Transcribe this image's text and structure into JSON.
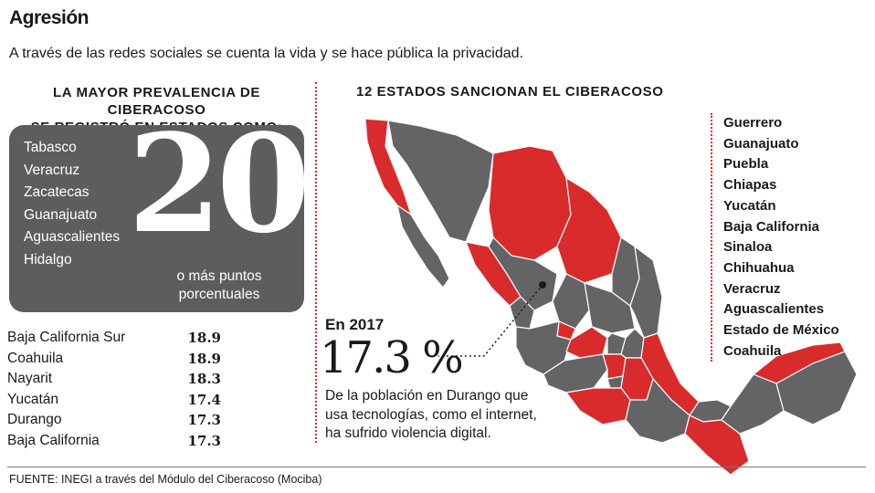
{
  "header": {
    "title": "Agresión",
    "subtitle": "A través de las redes sociales se cuenta la vida y se hace pública la privacidad."
  },
  "prevalence": {
    "heading_line1": "LA MAYOR PREVALENCIA DE CIBERACOSO",
    "heading_line2": "SE REGISTRÓ EN ESTADOS COMO:",
    "states": [
      "Tabasco",
      "Veracruz",
      "Zacatecas",
      "Guanajuato",
      "Aguascalientes",
      "Hidalgo"
    ],
    "big_number": "20",
    "caption_line1": "o más puntos",
    "caption_line2": "porcentuales"
  },
  "chart_data": {
    "type": "table",
    "categories": [
      "Baja California Sur",
      "Coahuila",
      "Nayarit",
      "Yucatán",
      "Durango",
      "Baja California"
    ],
    "values": [
      18.9,
      18.9,
      18.3,
      17.4,
      17.3,
      17.3
    ],
    "value_labels": [
      "18.9",
      "18.9",
      "18.3",
      "17.4",
      "17.3",
      "17.3"
    ]
  },
  "sanctions": {
    "heading": "12 ESTADOS SANCIONAN EL CIBERACOSO",
    "states": [
      "Guerrero",
      "Guanajuato",
      "Puebla",
      "Chiapas",
      "Yucatán",
      "Baja California",
      "Sinaloa",
      "Chihuahua",
      "Veracruz",
      "Aguascalientes",
      "Estado de México",
      "Coahuila"
    ]
  },
  "highlight": {
    "year": "En 2017",
    "percent": "17.3 %",
    "line1": "De la población en Durango que",
    "line2": "usa tecnologías, como el internet,",
    "line3": "ha sufrido violencia digital."
  },
  "footer": {
    "source": "FUENTE: INEGI a través del Módulo del Ciberacoso (Mociba)"
  },
  "colors": {
    "sanction_red": "#d92b2b",
    "state_gray": "#646466",
    "box_gray": "#5c5d5f"
  },
  "map": {
    "legend": "red = state sanctions cyberbullying; gray = does not"
  }
}
